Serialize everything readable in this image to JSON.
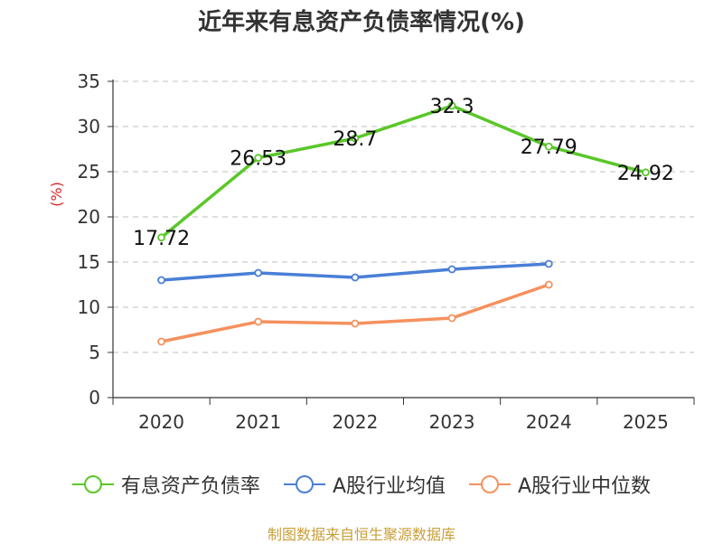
{
  "title": "近年来有息资产负债率情况(%)",
  "source": "制图数据来自恒生聚源数据库",
  "chart_data": {
    "type": "line",
    "title": "近年来有息资产负债率情况(%)",
    "ylabel": "(%)",
    "xlabel": "",
    "categories": [
      "2020",
      "2021",
      "2022",
      "2023",
      "2024",
      "2025"
    ],
    "yticks": [
      0,
      5,
      10,
      15,
      20,
      25,
      30,
      35
    ],
    "ylim": [
      0,
      35
    ],
    "grid": true,
    "legend_position": "bottom",
    "series": [
      {
        "name": "有息资产负债率",
        "color": "#5ac729",
        "values": [
          17.72,
          26.53,
          28.7,
          32.3,
          27.79,
          24.92
        ],
        "labels": [
          "17.72",
          "26.53",
          "28.7",
          "32.3",
          "27.79",
          "24.92"
        ]
      },
      {
        "name": "A股行业均值",
        "color": "#4a7fd6",
        "values": [
          13.0,
          13.8,
          13.3,
          14.2,
          14.8,
          null
        ]
      },
      {
        "name": "A股行业中位数",
        "color": "#f5915e",
        "values": [
          6.2,
          8.4,
          8.2,
          8.8,
          12.5,
          null
        ]
      }
    ]
  }
}
